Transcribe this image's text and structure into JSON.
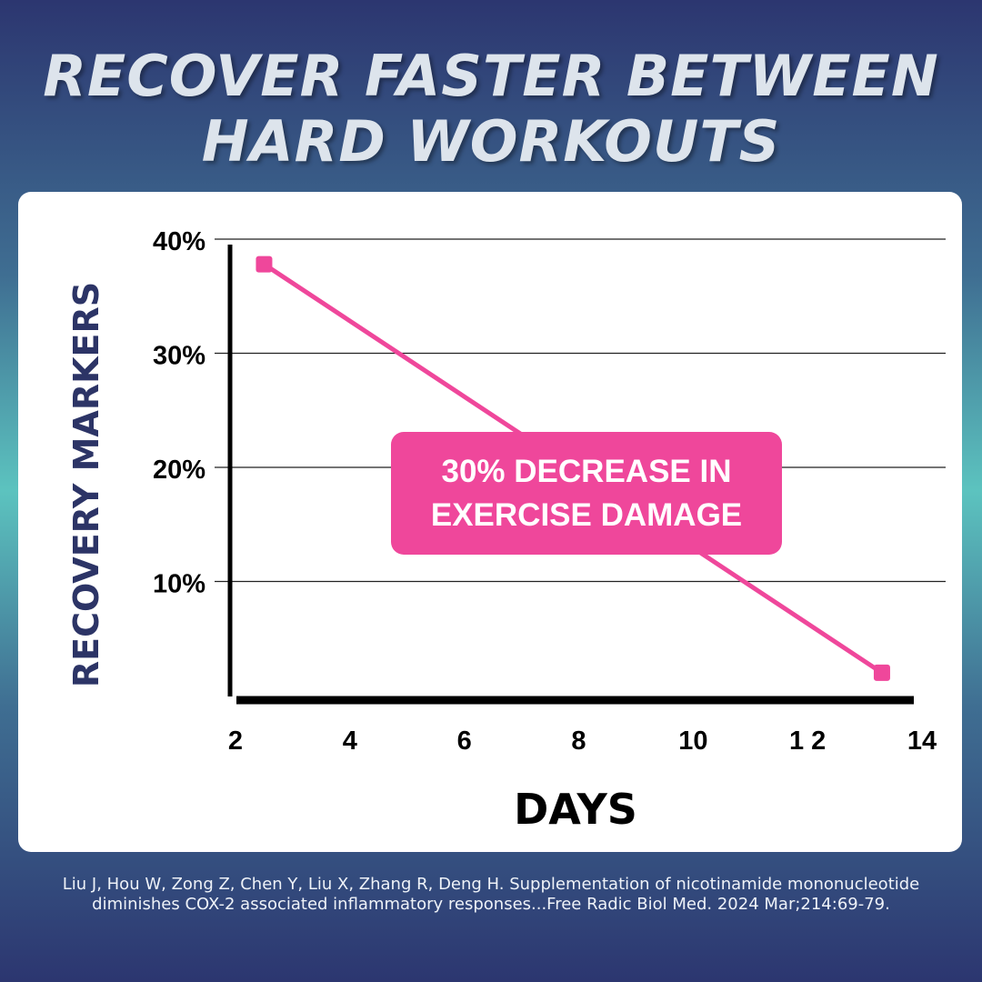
{
  "headline": {
    "line1": "RECOVER FASTER BETWEEN",
    "line2": "HARD WORKOUTS"
  },
  "callout": {
    "line1": "30% DECREASE IN",
    "line2": "EXERCISE DAMAGE"
  },
  "citation": "Liu J, Hou W, Zong Z, Chen Y, Liu X, Zhang R, Deng H. Supplementation of nicotinamide mononucleotide diminishes COX-2 associated inflammatory responses...Free Radic Biol Med. 2024 Mar;214:69-79.",
  "colors": {
    "accent": "#ef479b",
    "ylabel": "#2c3466",
    "axis": "#000000"
  },
  "chart_data": {
    "type": "line",
    "title": "",
    "xlabel": "DAYS",
    "ylabel": "RECOVERY MARKERS",
    "x_ticks": [
      {
        "value": 2,
        "label": "2"
      },
      {
        "value": 4,
        "label": "4"
      },
      {
        "value": 6,
        "label": "6"
      },
      {
        "value": 8,
        "label": "8"
      },
      {
        "value": 10,
        "label": "10"
      },
      {
        "value": 12,
        "label": "1 2"
      },
      {
        "value": 14,
        "label": "14"
      }
    ],
    "y_ticks": [
      {
        "value": 10,
        "label": "10%"
      },
      {
        "value": 20,
        "label": "20%"
      },
      {
        "value": 30,
        "label": "30%"
      },
      {
        "value": 40,
        "label": "40%"
      }
    ],
    "ylim": [
      0,
      40
    ],
    "grid": true,
    "series": [
      {
        "points": [
          {
            "x": 2.5,
            "y": 37.8
          },
          {
            "x": 13.3,
            "y": 2.0
          }
        ]
      }
    ]
  }
}
